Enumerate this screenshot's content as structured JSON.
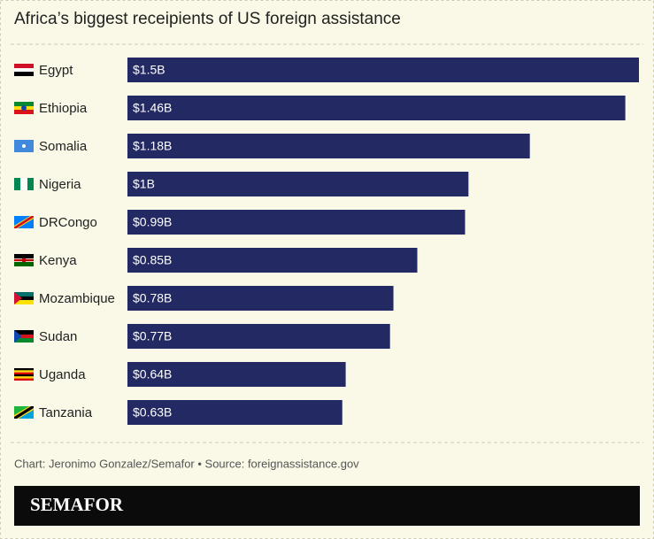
{
  "chart_data": {
    "type": "bar",
    "title": "Africa’s biggest receipients of US foreign assistance",
    "categories": [
      "Egypt",
      "Ethiopia",
      "Somalia",
      "Nigeria",
      "DRCongo",
      "Kenya",
      "Mozambique",
      "Sudan",
      "Uganda",
      "Tanzania"
    ],
    "values": [
      1.5,
      1.46,
      1.18,
      1,
      0.99,
      0.85,
      0.78,
      0.77,
      0.64,
      0.63
    ],
    "value_labels": [
      "$1.5B",
      "$1.46B",
      "$1.18B",
      "$1B",
      "$0.99B",
      "$0.85B",
      "$0.78B",
      "$0.77B",
      "$0.64B",
      "$0.63B"
    ],
    "color": "#232a63",
    "note": "Chart: Jeronimo Gonzalez/Semafor • Source: foreignassistance.gov",
    "brand": "SEMAFOR"
  }
}
